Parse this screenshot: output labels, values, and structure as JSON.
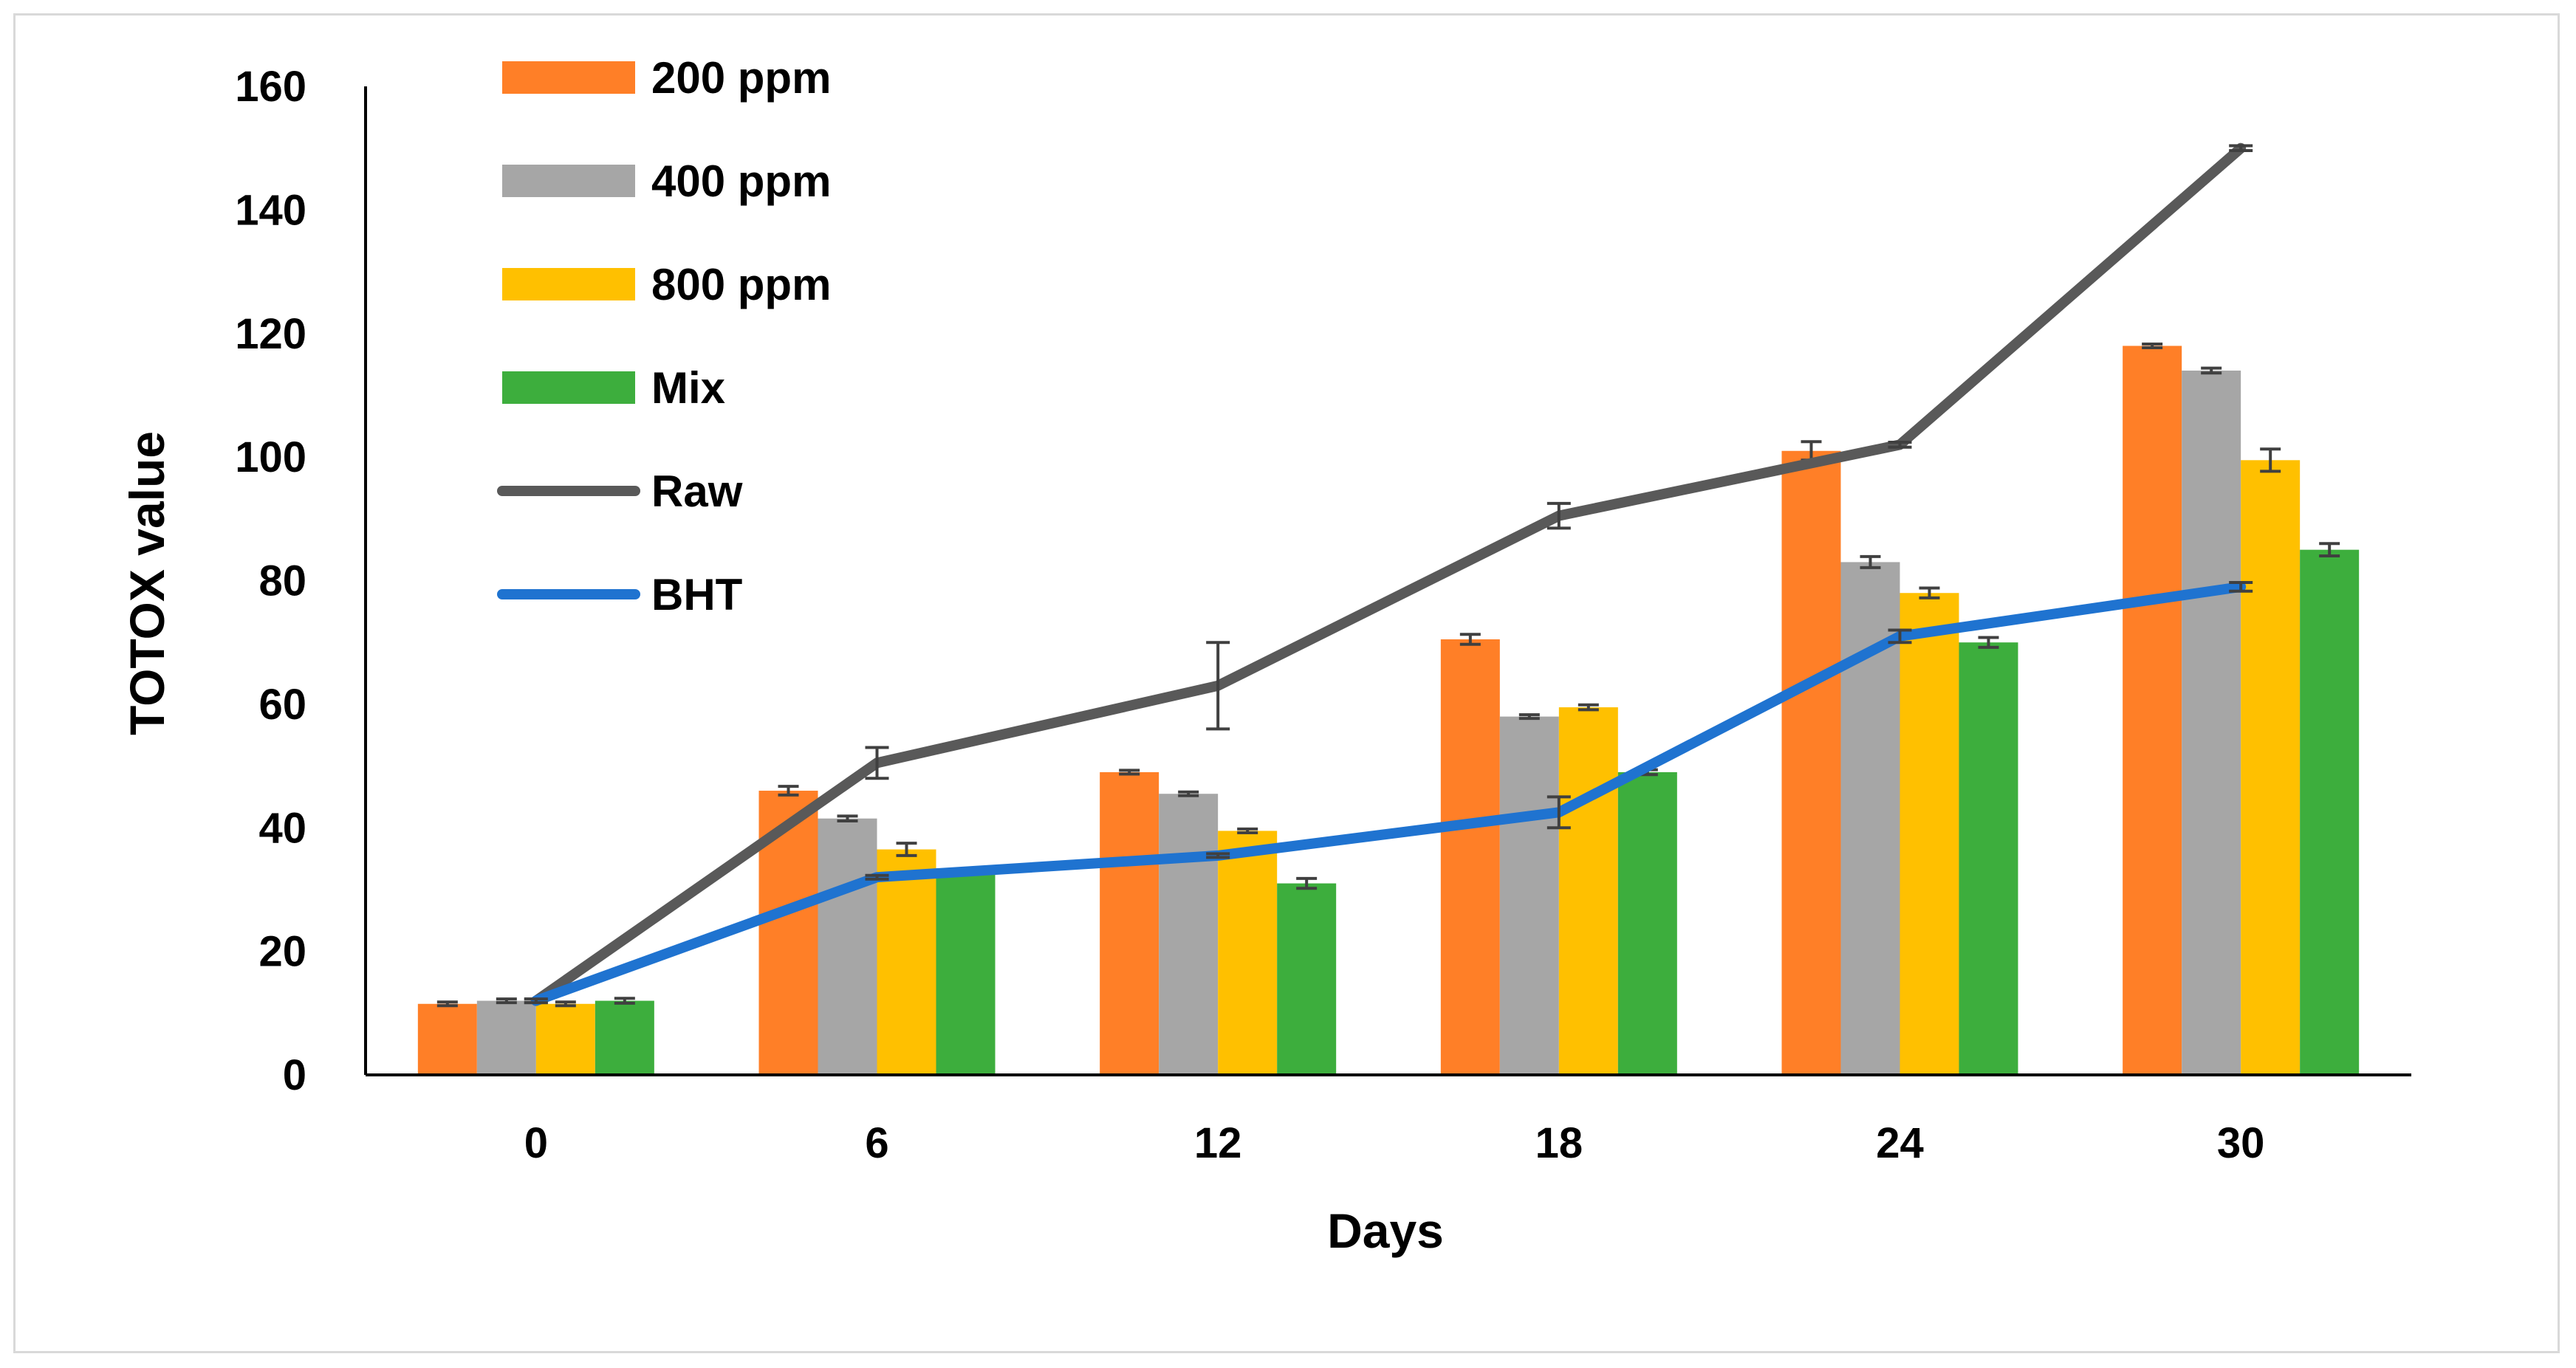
{
  "chart_data": {
    "type": "bar",
    "title": "",
    "xlabel": "Days",
    "ylabel": "TOTOX value",
    "ylim": [
      0,
      160
    ],
    "yticks": [
      "0",
      "20",
      "40",
      "60",
      "80",
      "100",
      "120",
      "140",
      "160"
    ],
    "categories": [
      "0",
      "6",
      "12",
      "18",
      "24",
      "30"
    ],
    "grid": false,
    "legend_position": "top-left",
    "series": [
      {
        "name": "200 ppm",
        "kind": "bar",
        "color": "#FF7F27",
        "values": [
          11.5,
          46,
          49,
          70.5,
          101,
          118
        ],
        "errors": [
          0.3,
          0.7,
          0.3,
          0.8,
          1.5,
          0.3
        ]
      },
      {
        "name": "400 ppm",
        "kind": "bar",
        "color": "#A6A6A6",
        "values": [
          12,
          41.5,
          45.5,
          58,
          83,
          114
        ],
        "errors": [
          0.3,
          0.4,
          0.3,
          0.3,
          0.9,
          0.4
        ]
      },
      {
        "name": "800 ppm",
        "kind": "bar",
        "color": "#FFC000",
        "values": [
          11.5,
          36.5,
          39.5,
          59.5,
          78,
          99.5
        ],
        "errors": [
          0.3,
          1.0,
          0.3,
          0.4,
          0.8,
          1.8
        ]
      },
      {
        "name": "Mix",
        "kind": "bar",
        "color": "#3DAE3D",
        "values": [
          12,
          33,
          31,
          49,
          70,
          85
        ],
        "errors": [
          0.4,
          0.3,
          0.8,
          0.4,
          0.8,
          1.0
        ]
      },
      {
        "name": "Raw",
        "kind": "line",
        "color": "#595959",
        "values": [
          12,
          50.5,
          63,
          90.5,
          102,
          150
        ],
        "errors": [
          0.3,
          2.5,
          7.0,
          2.0,
          0.4,
          0.4
        ]
      },
      {
        "name": "BHT",
        "kind": "line",
        "color": "#1F73D0",
        "values": [
          12,
          32,
          35.5,
          42.5,
          71,
          79
        ],
        "errors": [
          0.3,
          0.3,
          0.3,
          2.5,
          1.0,
          0.7
        ]
      }
    ]
  }
}
